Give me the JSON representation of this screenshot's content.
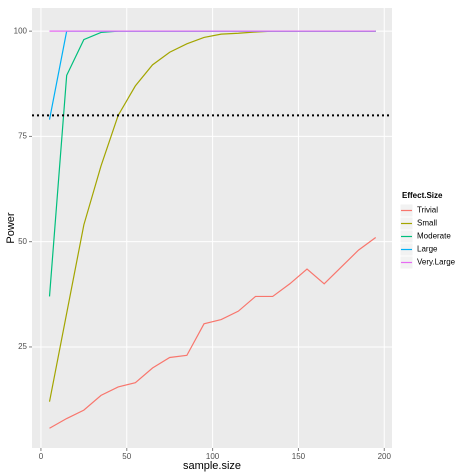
{
  "chart_data": {
    "type": "line",
    "x_label": "sample.size",
    "y_label": "Power",
    "legend_title": "Effect.Size",
    "x": [
      5,
      15,
      25,
      35,
      45,
      55,
      65,
      75,
      85,
      95,
      105,
      115,
      125,
      135,
      145,
      155,
      165,
      175,
      185,
      195
    ],
    "series": [
      {
        "name": "Trivial",
        "color": "#F8766D",
        "values": [
          5.7,
          8,
          10,
          13.5,
          15.5,
          16.5,
          20,
          22.5,
          23,
          30.5,
          31.5,
          33.5,
          37,
          37,
          40,
          43.5,
          40,
          44,
          48,
          51
        ]
      },
      {
        "name": "Small",
        "color": "#A3A500",
        "values": [
          12,
          33,
          54,
          68,
          80,
          87,
          92,
          95,
          97,
          98.5,
          99.3,
          99.5,
          99.8,
          100,
          100,
          100,
          100,
          100,
          100,
          100
        ]
      },
      {
        "name": "Moderate",
        "color": "#00BF7D",
        "values": [
          37,
          89.5,
          98,
          99.7,
          100,
          100,
          100,
          100,
          100,
          100,
          100,
          100,
          100,
          100,
          100,
          100,
          100,
          100,
          100,
          100
        ]
      },
      {
        "name": "Large",
        "color": "#00B0F6",
        "values": [
          79,
          100,
          100,
          100,
          100,
          100,
          100,
          100,
          100,
          100,
          100,
          100,
          100,
          100,
          100,
          100,
          100,
          100,
          100,
          100
        ]
      },
      {
        "name": "Very.Large",
        "color": "#E76BF3",
        "values": [
          100,
          100,
          100,
          100,
          100,
          100,
          100,
          100,
          100,
          100,
          100,
          100,
          100,
          100,
          100,
          100,
          100,
          100,
          100,
          100
        ]
      }
    ],
    "hline": 80,
    "xlim": [
      -5.2,
      204.5
    ],
    "ylim": [
      1,
      105.5
    ],
    "xticks": [
      0,
      50,
      100,
      150,
      200
    ],
    "yticks": [
      25,
      50,
      75,
      100
    ],
    "grid": true,
    "legend_position": "right"
  }
}
